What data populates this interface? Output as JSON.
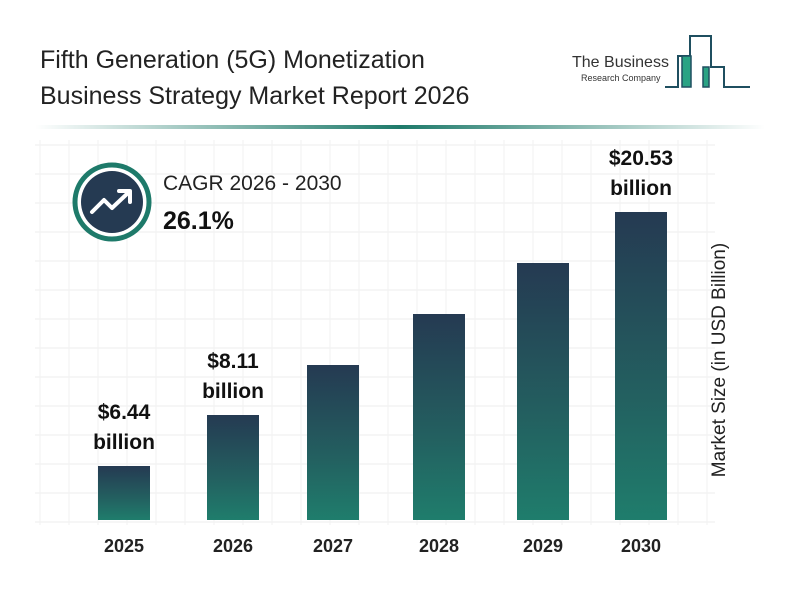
{
  "title_lines": [
    "Fifth Generation (5G) Monetization",
    "Business Strategy Market Report 2026"
  ],
  "logo": {
    "line1": "The Business",
    "line2": "Research Company"
  },
  "cagr": {
    "label": "CAGR 2026 - 2030",
    "value": "26.1%",
    "icon": "trend-up-arrow-icon"
  },
  "colors": {
    "bar_top": "#253a52",
    "bar_bottom": "#1f7d6c",
    "accent": "#1e7a6a"
  },
  "chart_data": {
    "type": "bar",
    "categories": [
      "2025",
      "2026",
      "2027",
      "2028",
      "2029",
      "2030"
    ],
    "values": [
      6.44,
      8.11,
      10.23,
      12.9,
      16.27,
      20.53
    ],
    "data_labels": [
      {
        "index": 0,
        "line1": "$6.44",
        "line2": "billion"
      },
      {
        "index": 1,
        "line1": "$8.11",
        "line2": "billion"
      },
      {
        "index": 5,
        "line1": "$20.53",
        "line2": "billion"
      }
    ],
    "ylabel": "Market Size (in USD Billion)",
    "xlabel": "",
    "grid": true
  }
}
